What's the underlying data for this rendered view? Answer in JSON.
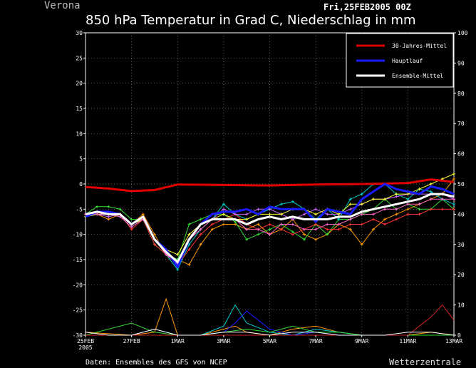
{
  "header": {
    "location": "Verona",
    "run": "Fri,25FEB2005 00Z",
    "title": "850 hPa Temperatur in Grad C, Niederschlag in mm"
  },
  "footer": {
    "source": "Daten: Ensembles des GFS von NCEP",
    "brand": "Wetterzentrale"
  },
  "chart_data": {
    "type": "line",
    "title": "850 hPa Temperatur in Grad C, Niederschlag in mm",
    "x_range_days": [
      0,
      16
    ],
    "x_ticks": [
      {
        "day": 0,
        "label": "25FEB",
        "sub": "2005"
      },
      {
        "day": 2,
        "label": "27FEB"
      },
      {
        "day": 4,
        "label": "1MAR"
      },
      {
        "day": 6,
        "label": "3MAR"
      },
      {
        "day": 8,
        "label": "5MAR"
      },
      {
        "day": 10,
        "label": "7MAR"
      },
      {
        "day": 12,
        "label": "9MAR"
      },
      {
        "day": 14,
        "label": "11MAR"
      },
      {
        "day": 16,
        "label": "13MAR"
      }
    ],
    "y_left": {
      "min": -30,
      "max": 30,
      "ticks": [
        30,
        25,
        20,
        15,
        10,
        5,
        0,
        -5,
        -10,
        -15,
        -20,
        -25,
        -30
      ]
    },
    "y_right": {
      "min": 0,
      "max": 100,
      "ticks": [
        100,
        90,
        80,
        70,
        60,
        50,
        40,
        30,
        20,
        10,
        0
      ]
    },
    "grid": true,
    "legend": {
      "position": "top-right"
    },
    "colors": {
      "mittel": "#e00000",
      "hauptlauf": "#1a1aff",
      "ensemble": "#ffffff"
    },
    "series": [
      {
        "name": "30-Jahres-Mittel",
        "color": "#e00000",
        "width": 3,
        "x": [
          0,
          1,
          2,
          3,
          4,
          6,
          8,
          10,
          12,
          14,
          15,
          16
        ],
        "y": [
          -0.6,
          -0.9,
          -1.4,
          -1.2,
          -0.1,
          -0.2,
          -0.3,
          -0.1,
          0.0,
          0.2,
          0.9,
          0.4
        ]
      },
      {
        "name": "Hauptlauf",
        "color": "#1a1aff",
        "width": 3,
        "x": [
          0,
          0.5,
          1,
          1.5,
          2,
          2.5,
          3,
          3.5,
          4,
          4.5,
          5,
          5.5,
          6,
          6.5,
          7,
          7.5,
          8,
          8.5,
          9,
          9.5,
          10,
          10.5,
          11,
          11.5,
          12,
          12.5,
          13,
          13.5,
          14,
          14.5,
          15,
          15.5,
          16
        ],
        "y": [
          -6.5,
          -5.5,
          -5.5,
          -6,
          -8,
          -6.5,
          -11,
          -13,
          -16.5,
          -11,
          -8,
          -6,
          -5.5,
          -5.5,
          -5,
          -6,
          -4.5,
          -5,
          -5,
          -5,
          -7.5,
          -5,
          -5.5,
          -6,
          -3,
          -1.5,
          0,
          -1,
          -1.5,
          -2,
          -0.5,
          -1,
          -2
        ]
      },
      {
        "name": "Ensemble-Mittel",
        "color": "#ffffff",
        "width": 3,
        "x": [
          0,
          0.5,
          1,
          1.5,
          2,
          2.5,
          3,
          3.5,
          4,
          4.5,
          5,
          5.5,
          6,
          6.5,
          7,
          7.5,
          8,
          8.5,
          9,
          9.5,
          10,
          10.5,
          11,
          11.5,
          12,
          12.5,
          13,
          13.5,
          14,
          14.5,
          15,
          15.5,
          16
        ],
        "y": [
          -6,
          -5.5,
          -6,
          -6,
          -8,
          -6.5,
          -11,
          -13.5,
          -15.5,
          -11,
          -8,
          -7,
          -7,
          -7,
          -8,
          -7,
          -6.5,
          -7,
          -6.5,
          -7,
          -7,
          -7,
          -6.5,
          -6.5,
          -5.5,
          -5,
          -4.5,
          -4,
          -3.5,
          -3,
          -2,
          -2,
          -2.5
        ]
      },
      {
        "name": "",
        "color": "#ff9900",
        "width": 1,
        "x": [
          0,
          0.5,
          1,
          1.5,
          2,
          2.5,
          3,
          3.5,
          4,
          4.5,
          5,
          5.5,
          6,
          6.5,
          7,
          7.5,
          8,
          8.5,
          9,
          9.5,
          10,
          10.5,
          11,
          11.5,
          12,
          12.5,
          13,
          13.5,
          14,
          14.5,
          15,
          15.5,
          16
        ],
        "y": [
          -6,
          -6,
          -7,
          -6,
          -8,
          -6,
          -10,
          -14,
          -15,
          -16,
          -12,
          -9,
          -8,
          -8,
          -9,
          -8,
          -10,
          -9,
          -7,
          -10,
          -11,
          -10,
          -8,
          -9,
          -12,
          -9,
          -7,
          -6,
          -5,
          -4,
          -3,
          -2,
          1
        ]
      },
      {
        "name": "",
        "color": "#33dd33",
        "width": 1,
        "x": [
          0,
          0.5,
          1,
          1.5,
          2,
          2.5,
          3,
          3.5,
          4,
          4.5,
          5,
          5.5,
          6,
          6.5,
          7,
          7.5,
          8,
          8.5,
          9,
          9.5,
          10,
          10.5,
          11,
          11.5,
          12,
          12.5,
          13,
          13.5,
          14,
          14.5,
          15,
          15.5,
          16
        ],
        "y": [
          -6,
          -4.5,
          -4.5,
          -5,
          -7,
          -7,
          -12,
          -14,
          -15,
          -8,
          -7,
          -6,
          -6,
          -7.5,
          -11,
          -10,
          -9,
          -8,
          -9.5,
          -11,
          -8,
          -10,
          -7,
          -7,
          -6,
          -5,
          -3,
          -5,
          -4,
          -5,
          -5,
          -3,
          -5
        ]
      },
      {
        "name": "",
        "color": "#00cccc",
        "width": 1,
        "x": [
          0,
          0.5,
          1,
          1.5,
          2,
          2.5,
          3,
          3.5,
          4,
          4.5,
          5,
          5.5,
          6,
          6.5,
          7,
          7.5,
          8,
          8.5,
          9,
          9.5,
          10,
          10.5,
          11,
          11.5,
          12,
          12.5,
          13,
          13.5,
          14,
          14.5,
          15,
          15.5,
          16
        ],
        "y": [
          -6.5,
          -6,
          -6,
          -6.5,
          -8.5,
          -7,
          -11,
          -14,
          -17,
          -12,
          -9,
          -7,
          -4,
          -6,
          -7,
          -6,
          -5,
          -4,
          -3.5,
          -5,
          -7,
          -5,
          -7,
          -3,
          -2,
          0,
          0,
          -2,
          -3,
          -1,
          -1.5,
          -3,
          -4
        ]
      },
      {
        "name": "",
        "color": "#ff3333",
        "width": 1,
        "x": [
          0,
          0.5,
          1,
          1.5,
          2,
          2.5,
          3,
          3.5,
          4,
          4.5,
          5,
          5.5,
          6,
          6.5,
          7,
          7.5,
          8,
          8.5,
          9,
          9.5,
          10,
          10.5,
          11,
          11.5,
          12,
          12.5,
          13,
          13.5,
          14,
          14.5,
          15,
          15.5,
          16
        ],
        "y": [
          -6,
          -6,
          -6,
          -6,
          -9,
          -7,
          -12,
          -14,
          -16,
          -13,
          -10,
          -8,
          -7,
          -6,
          -8,
          -9,
          -8,
          -9,
          -10,
          -9,
          -8,
          -9,
          -9,
          -8,
          -8,
          -7,
          -8,
          -7,
          -6,
          -6,
          -5,
          -5,
          -5
        ]
      },
      {
        "name": "",
        "color": "#cc66ff",
        "width": 1,
        "x": [
          0,
          0.5,
          1,
          1.5,
          2,
          2.5,
          3,
          3.5,
          4,
          4.5,
          5,
          5.5,
          6,
          6.5,
          7,
          7.5,
          8,
          8.5,
          9,
          9.5,
          10,
          10.5,
          11,
          11.5,
          12,
          12.5,
          13,
          13.5,
          14,
          14.5,
          15,
          15.5,
          16
        ],
        "y": [
          -6,
          -6,
          -6.5,
          -6,
          -8,
          -7,
          -11,
          -13,
          -16,
          -11,
          -8,
          -7,
          -5,
          -6,
          -6,
          -5,
          -5,
          -6,
          -7,
          -6,
          -5,
          -6,
          -6,
          -5,
          -4,
          -3,
          -3,
          -2.5,
          -2,
          -2,
          -2,
          -2,
          -3
        ]
      },
      {
        "name": "",
        "color": "#ffff33",
        "width": 1,
        "x": [
          0,
          0.5,
          1,
          1.5,
          2,
          2.5,
          3,
          3.5,
          4,
          4.5,
          5,
          5.5,
          6,
          6.5,
          7,
          7.5,
          8,
          8.5,
          9,
          9.5,
          10,
          10.5,
          11,
          11.5,
          12,
          12.5,
          13,
          13.5,
          14,
          14.5,
          15,
          15.5,
          16
        ],
        "y": [
          -6.5,
          -6,
          -6,
          -6,
          -8,
          -7,
          -11,
          -13,
          -14,
          -10,
          -8,
          -7,
          -6,
          -7,
          -7,
          -6,
          -6,
          -6,
          -5,
          -5,
          -6,
          -5,
          -6,
          -4,
          -4,
          -3,
          -3,
          -2,
          -2,
          -1,
          0,
          1,
          2
        ]
      },
      {
        "name": "",
        "color": "#ff66cc",
        "width": 1,
        "x": [
          0,
          0.5,
          1,
          1.5,
          2,
          2.5,
          3,
          3.5,
          4,
          4.5,
          5,
          5.5,
          6,
          6.5,
          7,
          7.5,
          8,
          8.5,
          9,
          9.5,
          10,
          10.5,
          11,
          11.5,
          12,
          12.5,
          13,
          13.5,
          14,
          14.5,
          15,
          15.5,
          16
        ],
        "y": [
          -6,
          -6,
          -6,
          -6.5,
          -8.5,
          -7,
          -11,
          -14,
          -15.5,
          -11,
          -9,
          -7,
          -7,
          -7,
          -9,
          -9,
          -10,
          -8,
          -8,
          -9,
          -9,
          -8,
          -8,
          -7,
          -6,
          -6,
          -5,
          -5,
          -4,
          -4,
          -3,
          -3,
          -3
        ]
      }
    ],
    "precipitation": [
      {
        "color": "#ff9900",
        "x": [
          0,
          2,
          3,
          3.5,
          4,
          5,
          6,
          6.5,
          7,
          8,
          9,
          10,
          11,
          12,
          13,
          14,
          15,
          16
        ],
        "y": [
          1,
          0,
          1,
          12,
          0,
          0,
          2,
          3,
          1,
          0,
          2,
          3,
          1,
          0,
          0,
          0,
          1,
          0
        ]
      },
      {
        "color": "#00cccc",
        "x": [
          0,
          2,
          3,
          4,
          5,
          6,
          6.5,
          7,
          8,
          9,
          10,
          11,
          12,
          13,
          14,
          15,
          16
        ],
        "y": [
          0,
          0,
          2,
          0,
          0,
          3,
          10,
          4,
          1,
          0,
          2,
          1,
          0,
          0,
          0,
          0,
          0
        ]
      },
      {
        "color": "#1a1aff",
        "x": [
          0,
          2,
          3,
          4,
          5,
          6,
          6.5,
          7,
          7.5,
          8,
          9,
          10,
          11,
          12,
          13,
          14,
          15,
          16
        ],
        "y": [
          0,
          0,
          2,
          0,
          0,
          1,
          4,
          8,
          5,
          2,
          0,
          1,
          0,
          0,
          0,
          0,
          0,
          0
        ]
      },
      {
        "color": "#33dd33",
        "x": [
          0,
          2,
          3,
          4,
          5,
          6,
          7,
          8,
          9,
          10,
          11,
          12,
          13,
          14,
          15,
          16
        ],
        "y": [
          0,
          4,
          1,
          0,
          0,
          1,
          2,
          1,
          3,
          1,
          1,
          0,
          0,
          0,
          0,
          0
        ]
      },
      {
        "color": "#cc2222",
        "x": [
          0,
          10,
          12,
          13,
          14,
          14.5,
          15,
          15.5,
          16
        ],
        "y": [
          0,
          0,
          0,
          0,
          0,
          3,
          6,
          10,
          5
        ]
      },
      {
        "color": "#ffffff",
        "x": [
          0,
          1,
          2,
          3,
          4,
          5,
          6,
          7,
          8,
          9,
          10,
          11,
          12,
          13,
          14,
          15,
          16
        ],
        "y": [
          1,
          0,
          0,
          2,
          0,
          0,
          1,
          1,
          0,
          1,
          1,
          0,
          0,
          0,
          1,
          1,
          0
        ]
      }
    ]
  }
}
